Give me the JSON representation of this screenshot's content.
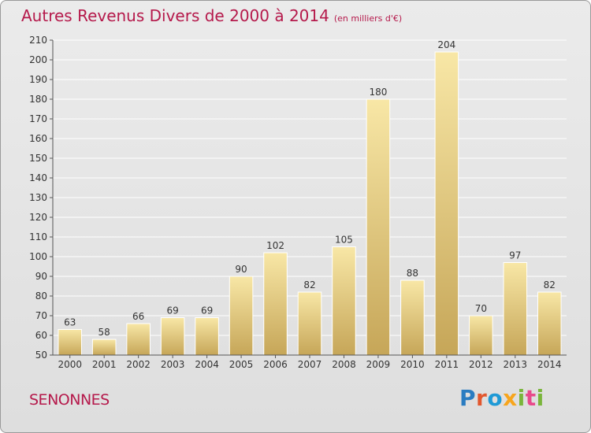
{
  "title": "Autres Revenus Divers de 2000 à 2014",
  "subtitle": "(en milliers d'€)",
  "commune": "SENONNES",
  "logo_text": "Proxiti",
  "colors": {
    "title": "#b5194b",
    "bar_light": "#f8e7a6",
    "bar_dark": "#c6a658",
    "grid": "#ffffff",
    "axis": "#555555"
  },
  "chart_data": {
    "type": "bar",
    "title": "Autres Revenus Divers de 2000 à 2014",
    "subtitle": "(en milliers d'€)",
    "categories": [
      "2000",
      "2001",
      "2002",
      "2003",
      "2004",
      "2005",
      "2006",
      "2007",
      "2008",
      "2009",
      "2010",
      "2011",
      "2012",
      "2013",
      "2014"
    ],
    "values": [
      63,
      58,
      66,
      69,
      69,
      90,
      102,
      82,
      105,
      180,
      88,
      204,
      70,
      97,
      82
    ],
    "ylim": [
      50,
      210
    ],
    "ytick_step": 10,
    "grid": true,
    "xlabel": "",
    "ylabel": ""
  }
}
